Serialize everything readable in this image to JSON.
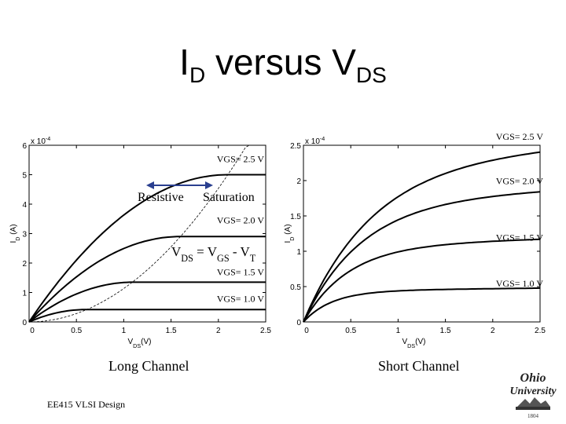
{
  "slide": {
    "title_main": "I",
    "title_sub1": "D",
    "title_mid": " versus V",
    "title_sub2": "DS",
    "footer": "EE415 VLSI Design",
    "logo_line1": "Ohio",
    "logo_line2": "University",
    "logo_line3": "1804"
  },
  "chart_data": [
    {
      "type": "line",
      "caption": "Long Channel",
      "xlabel_main": "V",
      "xlabel_sub": "DS",
      "xlabel_unit": "(V)",
      "ylabel_main": "I",
      "ylabel_sub": "D",
      "ylabel_unit": " (A)",
      "exponent_prefix": "x 10",
      "exponent": "-4",
      "xlim": [
        0,
        2.5
      ],
      "ylim": [
        0,
        6
      ],
      "xticks": [
        "0",
        "0.5",
        "1",
        "1.5",
        "2",
        "2.5"
      ],
      "yticks": [
        "0",
        "1",
        "2",
        "3",
        "4",
        "5",
        "6"
      ],
      "series": [
        {
          "name": "VGS= 2.5 V",
          "vgs": 2.5,
          "vdsat": 2.1,
          "isat": 5.0
        },
        {
          "name": "VGS= 2.0 V",
          "vgs": 2.0,
          "vdsat": 1.6,
          "isat": 2.9
        },
        {
          "name": "VGS= 1.5 V",
          "vgs": 1.5,
          "vdsat": 1.1,
          "isat": 1.35
        },
        {
          "name": "VGS= 1.0 V",
          "vgs": 1.0,
          "vdsat": 0.6,
          "isat": 0.42
        }
      ],
      "boundary_label": "V<sub>DS</sub> = V<sub>GS</sub> - V<sub>T</sub>",
      "boundary_main": "V",
      "boundary_sub1": "DS",
      "boundary_mid": " = V",
      "boundary_sub2": "GS",
      "boundary_mid2": " - V",
      "boundary_sub3": "T",
      "region_left": "Resistive",
      "region_right": "Saturation"
    },
    {
      "type": "line",
      "caption": "Short Channel",
      "xlabel_main": "V",
      "xlabel_sub": "DS",
      "xlabel_unit": "(V)",
      "ylabel_main": "I",
      "ylabel_sub": "D",
      "ylabel_unit": " (A)",
      "exponent_prefix": "x 10",
      "exponent": "-4",
      "xlim": [
        0,
        2.5
      ],
      "ylim": [
        0,
        2.5
      ],
      "xticks": [
        "0",
        "0.5",
        "1",
        "1.5",
        "2",
        "2.5"
      ],
      "yticks": [
        "0",
        "0.5",
        "1",
        "1.5",
        "2",
        "2.5"
      ],
      "series": [
        {
          "name": "VGS= 2.5 V",
          "vsat": 0.72,
          "isat": 2.28
        },
        {
          "name": "VGS= 2.0 V",
          "vsat": 0.6,
          "isat": 1.72
        },
        {
          "name": "VGS= 1.5 V",
          "vsat": 0.46,
          "isat": 1.08
        },
        {
          "name": "VGS= 1.0 V",
          "vsat": 0.3,
          "isat": 0.44
        }
      ]
    }
  ]
}
